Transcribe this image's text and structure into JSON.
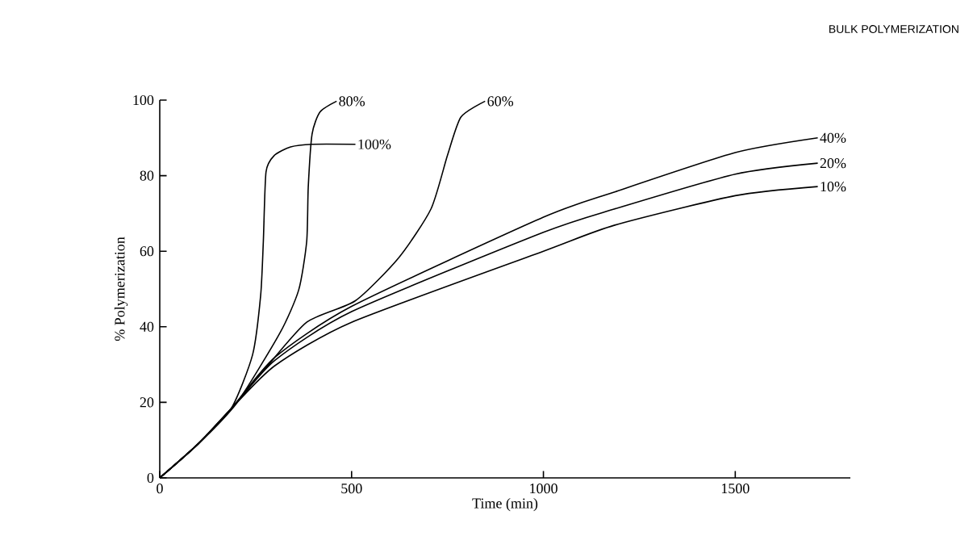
{
  "chart_data": {
    "type": "line",
    "title": "BULK POLYMERIZATION",
    "xlabel": "Time (min)",
    "ylabel": "% Polymerization",
    "xlim": [
      0,
      1800
    ],
    "ylim": [
      0,
      100
    ],
    "xticks": [
      0,
      500,
      1000,
      1500
    ],
    "yticks": [
      0,
      20,
      40,
      60,
      80,
      100
    ],
    "grid": false,
    "legend": false,
    "marker": "none",
    "line_style": "solid",
    "series": [
      {
        "name": "100%",
        "color": "#000000",
        "x": [
          0,
          100,
          186,
          242,
          263,
          270,
          277,
          299,
          341,
          397,
          510
        ],
        "values": [
          0,
          9,
          18.3,
          32.6,
          48.3,
          62.6,
          81,
          85.4,
          87.6,
          88.3,
          88.3
        ]
      },
      {
        "name": "80%",
        "color": "#000000",
        "x": [
          0,
          100,
          200,
          313,
          362,
          383,
          387,
          397,
          418,
          461
        ],
        "values": [
          0,
          9,
          19.7,
          38.3,
          49.7,
          62.6,
          76.9,
          91,
          96.9,
          99.7
        ]
      },
      {
        "name": "60%",
        "color": "#000000",
        "x": [
          0,
          100,
          186,
          270,
          383,
          510,
          623,
          707,
          750,
          785,
          848
        ],
        "values": [
          0,
          9,
          18.3,
          28.3,
          41.2,
          46.9,
          58.3,
          71.2,
          85.4,
          95.5,
          99.7
        ]
      },
      {
        "name": "40%",
        "color": "#000000",
        "x": [
          0,
          100,
          186,
          300,
          500,
          1000,
          1186,
          1500,
          1715
        ],
        "values": [
          0,
          9,
          18.3,
          31.9,
          45.4,
          69,
          75.7,
          86.1,
          90
        ]
      },
      {
        "name": "20%",
        "color": "#000000",
        "x": [
          0,
          100,
          186,
          300,
          500,
          1000,
          1186,
          1500,
          1715
        ],
        "values": [
          0,
          9,
          18.3,
          31.1,
          44,
          65,
          71.2,
          80.4,
          83.3
        ]
      },
      {
        "name": "10%",
        "color": "#000000",
        "x": [
          0,
          100,
          186,
          300,
          500,
          1000,
          1186,
          1500,
          1715
        ],
        "values": [
          0,
          9,
          18.3,
          29.7,
          41.2,
          60,
          66.9,
          74.7,
          77.1
        ]
      }
    ]
  }
}
